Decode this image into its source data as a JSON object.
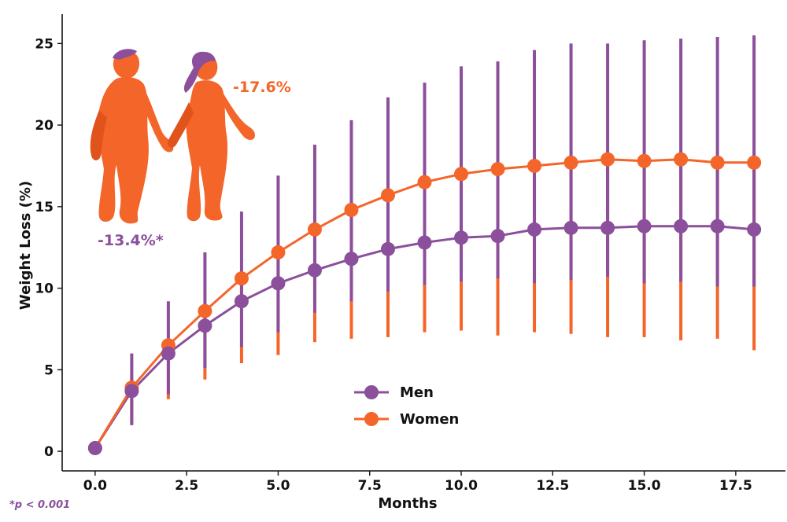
{
  "chart_data": {
    "type": "line",
    "title": "",
    "xlabel": "Months",
    "ylabel": "Weight Loss (%)",
    "xlim": [
      -0.9,
      18.9
    ],
    "ylim": [
      -1.2,
      26.8
    ],
    "xticks": [
      0.0,
      2.5,
      5.0,
      7.5,
      10.0,
      12.5,
      15.0,
      17.5
    ],
    "xtick_labels": [
      "0.0",
      "2.5",
      "5.0",
      "7.5",
      "10.0",
      "12.5",
      "15.0",
      "17.5"
    ],
    "yticks": [
      0,
      5,
      10,
      15,
      20,
      25
    ],
    "ytick_labels": [
      "0",
      "5",
      "10",
      "15",
      "20",
      "25"
    ],
    "x": [
      0,
      1,
      2,
      3,
      4,
      5,
      6,
      7,
      8,
      9,
      10,
      11,
      12,
      13,
      14,
      15,
      16,
      17,
      18
    ],
    "series": [
      {
        "name": "Men",
        "color": "#8B4F9C",
        "values": [
          0.2,
          3.7,
          6.0,
          7.7,
          9.2,
          10.3,
          11.1,
          11.8,
          12.4,
          12.8,
          13.1,
          13.2,
          13.6,
          13.7,
          13.7,
          13.8,
          13.8,
          13.8,
          13.6
        ],
        "err_low": [
          0.2,
          1.6,
          3.5,
          5.1,
          6.4,
          7.3,
          8.5,
          9.2,
          9.8,
          10.2,
          10.4,
          10.6,
          10.3,
          10.5,
          10.7,
          10.3,
          10.4,
          10.1,
          10.1
        ],
        "err_high": [
          0.2,
          6.0,
          9.2,
          12.2,
          14.7,
          16.9,
          18.8,
          20.3,
          21.7,
          22.6,
          23.6,
          23.9,
          24.6,
          25.0,
          25.0,
          25.2,
          25.3,
          25.4,
          25.5
        ]
      },
      {
        "name": "Women",
        "color": "#F4652A",
        "values": [
          0.2,
          3.9,
          6.5,
          8.6,
          10.6,
          12.2,
          13.6,
          14.8,
          15.7,
          16.5,
          17.0,
          17.3,
          17.5,
          17.7,
          17.9,
          17.8,
          17.9,
          17.7,
          17.7
        ],
        "err_low": [
          0.2,
          1.7,
          3.2,
          4.4,
          5.4,
          5.9,
          6.7,
          6.9,
          7.0,
          7.3,
          7.4,
          7.1,
          7.3,
          7.2,
          7.0,
          7.0,
          6.8,
          6.9,
          6.2
        ],
        "err_high": [
          0.2,
          4.5,
          6.5,
          8.5,
          10.5,
          12.0,
          13.5,
          14.5,
          15.5,
          16.5,
          17.0,
          17.2,
          17.5,
          17.5,
          17.5,
          17.5,
          17.5,
          17.5,
          17.5
        ]
      }
    ],
    "legend": {
      "placement": "center-bottom",
      "entries": [
        "Men",
        "Women"
      ]
    },
    "annotations": {
      "men_pct": "-13.4%*",
      "women_pct": "-17.6%",
      "footnote": "*p < 0.001"
    },
    "grid": false
  }
}
